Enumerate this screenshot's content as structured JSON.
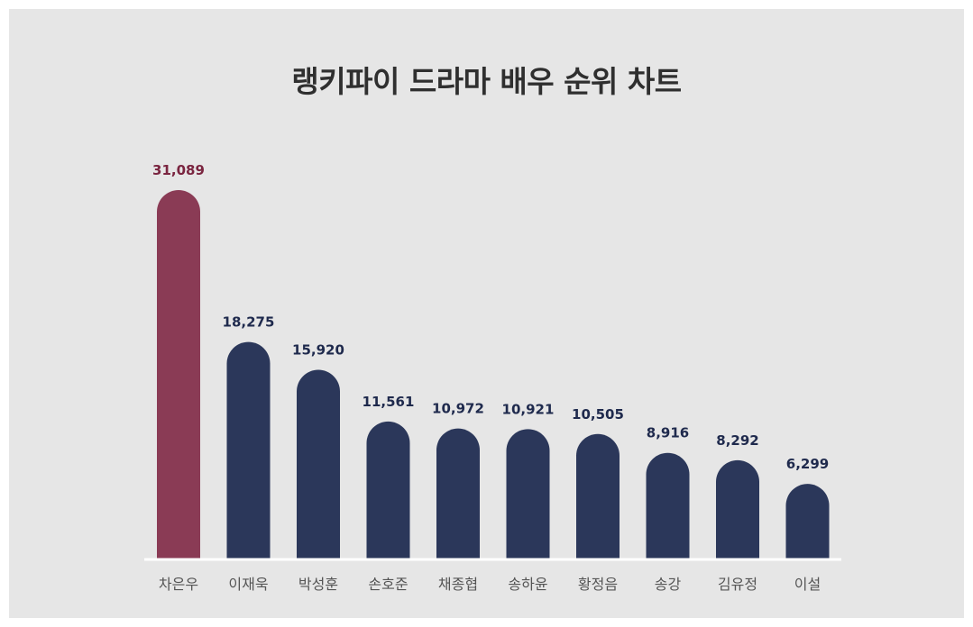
{
  "chart_data": {
    "type": "bar",
    "title": "랭키파이 드라마 배우 순위 차트",
    "categories": [
      "차은우",
      "이재욱",
      "박성훈",
      "손호준",
      "채종협",
      "송하윤",
      "황정음",
      "송강",
      "김유정",
      "이설"
    ],
    "values": [
      31089,
      18275,
      15920,
      11561,
      10972,
      10921,
      10505,
      8916,
      8292,
      6299
    ],
    "value_labels": [
      "31,089",
      "18,275",
      "15,920",
      "11,561",
      "10,972",
      "10,921",
      "10,505",
      "8,916",
      "8,292",
      "6,299"
    ],
    "xlabel": "",
    "ylabel": "",
    "grid": false,
    "legend": "none",
    "colors": {
      "highlight": "#8a3b55",
      "highlight_label": "#7a2540",
      "bar": "#2b375a",
      "label": "#1f2a4d",
      "category": "#555555",
      "background": "#e6e6e6",
      "baseline": "#ffffff"
    }
  }
}
